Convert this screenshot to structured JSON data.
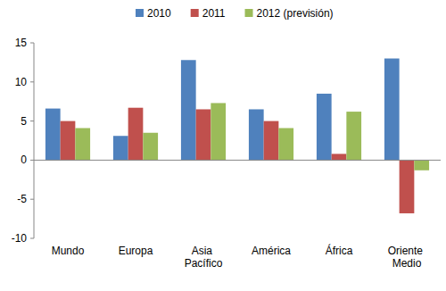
{
  "chart_data": {
    "type": "bar",
    "categories": [
      "Mundo",
      "Europa",
      "Asia Pacífico",
      "América",
      "África",
      "Oriente Medio"
    ],
    "series": [
      {
        "name": "2010",
        "color": "#4f81bd",
        "values": [
          6.6,
          3.1,
          12.8,
          6.5,
          8.5,
          13.0
        ]
      },
      {
        "name": "2011",
        "color": "#c0504d",
        "values": [
          5.0,
          6.7,
          6.5,
          5.0,
          0.8,
          -6.8
        ]
      },
      {
        "name": "2012 (previsión)",
        "color": "#9bbb59",
        "values": [
          4.1,
          3.5,
          7.3,
          4.1,
          6.2,
          -1.3
        ]
      }
    ],
    "ylim": [
      -10,
      15
    ],
    "yticks": [
      -10,
      -5,
      0,
      5,
      10,
      15
    ],
    "grid": false,
    "legend": "top"
  }
}
